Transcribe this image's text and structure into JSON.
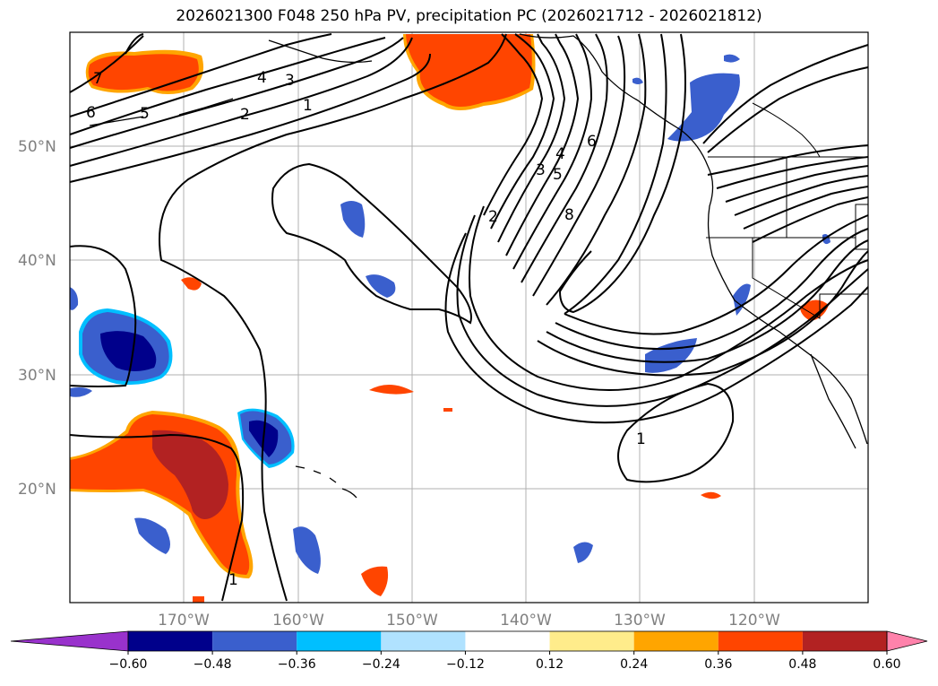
{
  "title": "2026021300 F048 250 hPa PV, precipitation PC (2026021712 - 2026021812)",
  "lat_labels": [
    "50°N",
    "40°N",
    "30°N",
    "20°N"
  ],
  "lon_labels": [
    "170°W",
    "160°W",
    "150°W",
    "140°W",
    "130°W",
    "120°W"
  ],
  "colorbar": {
    "ticks": [
      "−0.60",
      "−0.48",
      "−0.36",
      "−0.24",
      "−0.12",
      "0.12",
      "0.24",
      "0.36",
      "0.48",
      "0.60"
    ],
    "colors": [
      "#9932cc",
      "#00008b",
      "#3a5fcd",
      "#00bfff",
      "#b0e2ff",
      "#ffffff",
      "#ffec8b",
      "#ffa500",
      "#ff4500",
      "#b22222",
      "#ff82ab"
    ]
  },
  "contour_labels": [
    "7",
    "6",
    "5",
    "4",
    "3",
    "2",
    "1",
    "2",
    "3",
    "4",
    "5",
    "6",
    "8",
    "1",
    "1"
  ],
  "colors": {
    "negative_strong": "#00008b",
    "negative_mid": "#3a5fcd",
    "negative_light": "#00bfff",
    "positive_mid": "#ff4500",
    "positive_strong": "#b22222",
    "positive_light": "#ffa500"
  }
}
